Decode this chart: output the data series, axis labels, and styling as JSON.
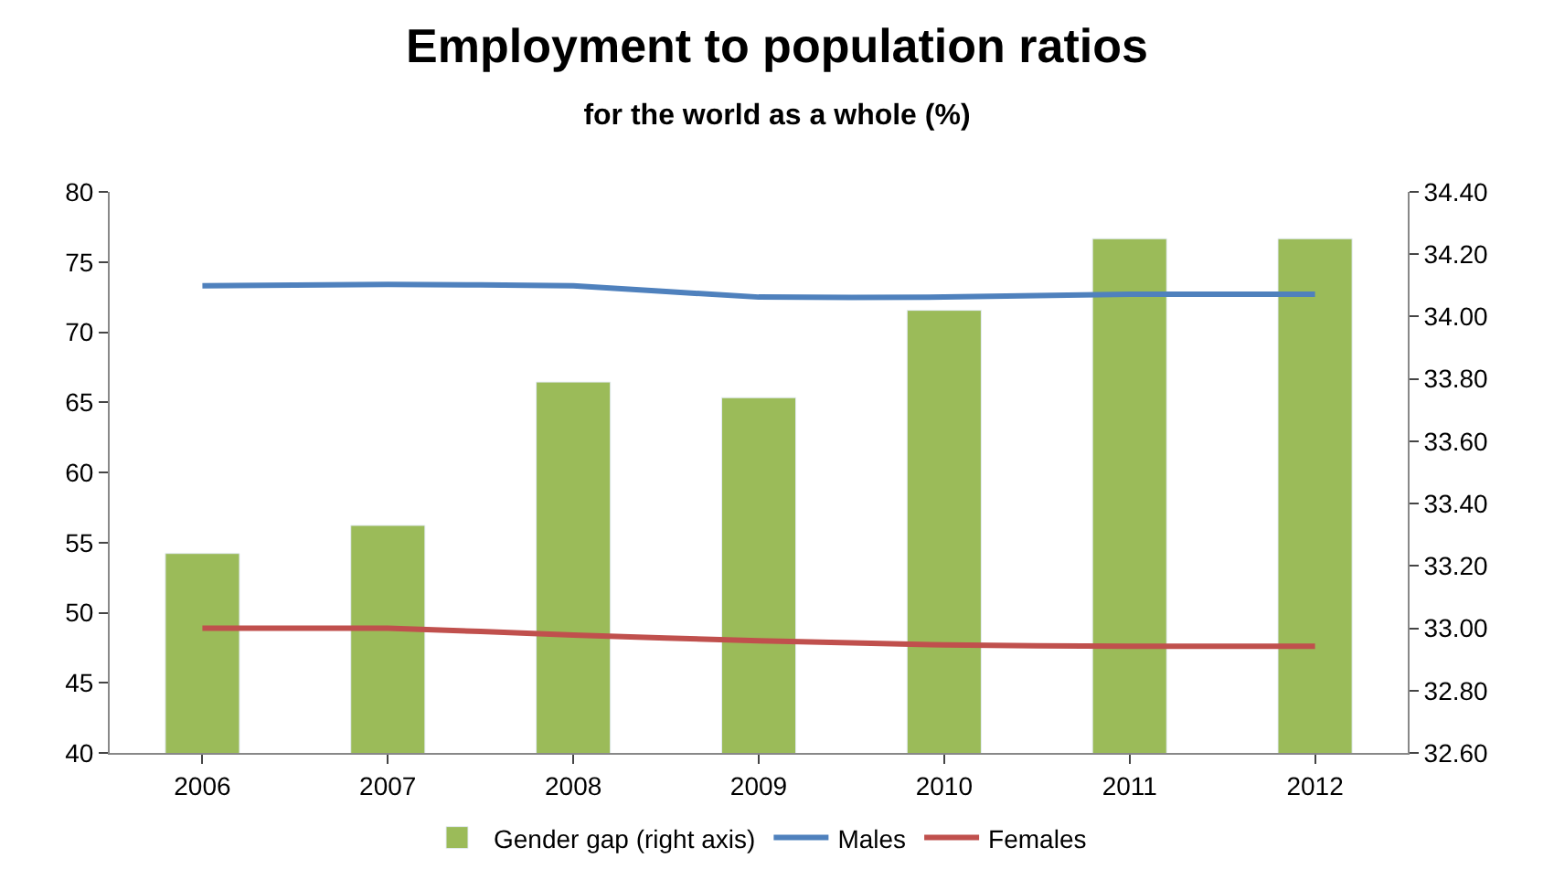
{
  "chart_data": {
    "type": "bar",
    "title": "Employment to population ratios",
    "subtitle": "for the world as a whole (%)",
    "categories": [
      "2006",
      "2007",
      "2008",
      "2009",
      "2010",
      "2011",
      "2012"
    ],
    "series": [
      {
        "name": "Gender gap (right axis)",
        "axis": "y2",
        "color": "#9bbb59",
        "values": [
          33.24,
          33.33,
          33.79,
          33.74,
          34.02,
          34.25,
          34.25
        ]
      },
      {
        "name": "Males",
        "type": "line",
        "color": "#4f81bd",
        "values": [
          73.3,
          73.4,
          73.3,
          72.5,
          72.5,
          72.7,
          72.7
        ]
      },
      {
        "name": "Females",
        "type": "line",
        "color": "#c0504d",
        "values": [
          48.9,
          48.9,
          48.4,
          48.0,
          47.7,
          47.6,
          47.6
        ]
      }
    ],
    "ylim": [
      40,
      80
    ],
    "yticks": [
      40,
      45,
      50,
      55,
      60,
      65,
      70,
      75,
      80
    ],
    "y2lim": [
      32.6,
      34.4
    ],
    "y2ticks": [
      {
        "value": 32.6,
        "label": "32.60"
      },
      {
        "value": 32.8,
        "label": "32.80"
      },
      {
        "value": 33.0,
        "label": "33.00"
      },
      {
        "value": 33.2,
        "label": "33.20"
      },
      {
        "value": 33.4,
        "label": "33.40"
      },
      {
        "value": 33.6,
        "label": "33.60"
      },
      {
        "value": 33.8,
        "label": "33.80"
      },
      {
        "value": 34.0,
        "label": "34.00"
      },
      {
        "value": 34.2,
        "label": "34.20"
      },
      {
        "value": 34.4,
        "label": "34.40"
      }
    ],
    "legend": "bottom",
    "marker": "none",
    "line_style": "solid"
  }
}
